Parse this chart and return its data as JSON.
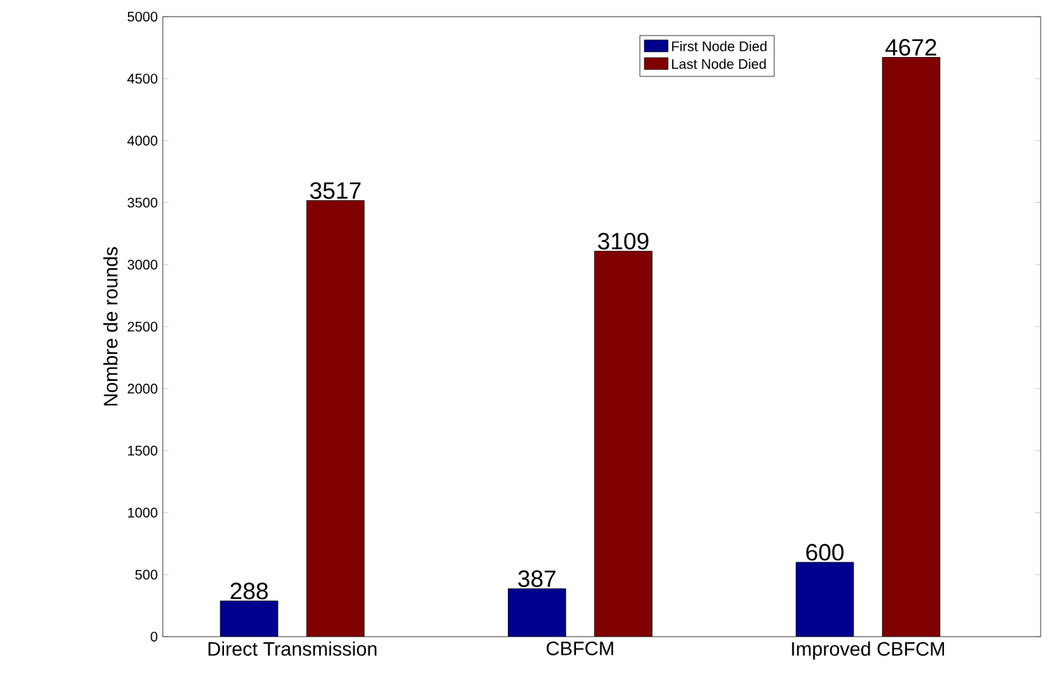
{
  "chart_data": {
    "type": "bar",
    "ylabel": "Nombre de rounds",
    "categories": [
      "Direct Transmission",
      "CBFCM",
      "Improved CBFCM"
    ],
    "series": [
      {
        "name": "First Node Died",
        "color": "#00008f",
        "values": [
          288,
          387,
          600
        ]
      },
      {
        "name": "Last Node Died",
        "color": "#800000",
        "values": [
          3517,
          3109,
          4672
        ]
      }
    ],
    "ylim": [
      0,
      5000
    ],
    "yticks": [
      0,
      500,
      1000,
      1500,
      2000,
      2500,
      3000,
      3500,
      4000,
      4500,
      5000
    ],
    "data_labels": true,
    "legend": "top",
    "grid": false
  }
}
